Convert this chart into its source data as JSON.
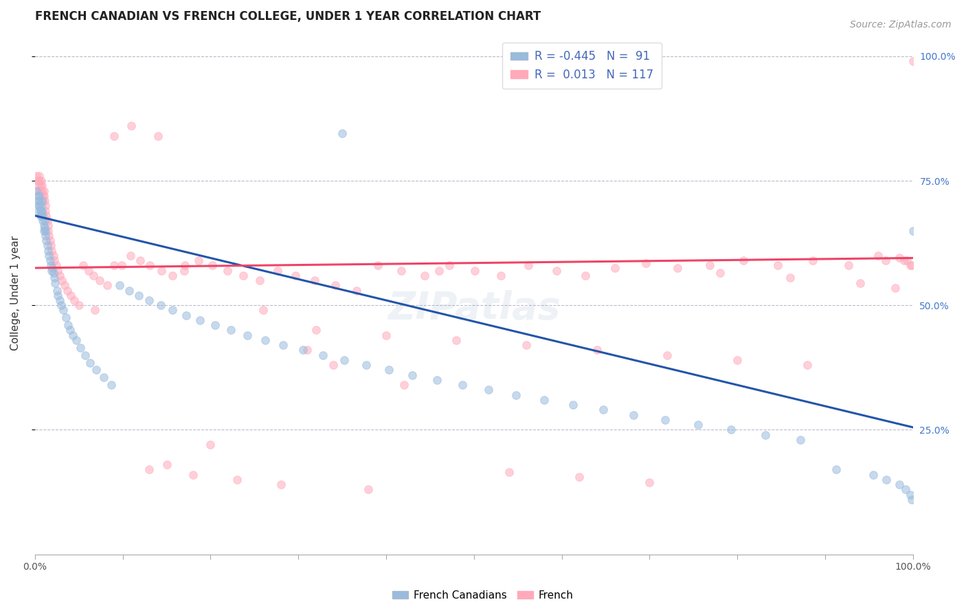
{
  "title": "FRENCH CANADIAN VS FRENCH COLLEGE, UNDER 1 YEAR CORRELATION CHART",
  "source": "Source: ZipAtlas.com",
  "ylabel": "College, Under 1 year",
  "right_yticks": [
    "25.0%",
    "50.0%",
    "75.0%",
    "100.0%"
  ],
  "right_ytick_vals": [
    0.25,
    0.5,
    0.75,
    1.0
  ],
  "legend_blue_r": "R = -0.445",
  "legend_blue_n": "N =  91",
  "legend_pink_r": "R =  0.013",
  "legend_pink_n": "N = 117",
  "color_blue": "#99BBDD",
  "color_pink": "#FFAABB",
  "color_blue_line": "#2255AA",
  "color_pink_line": "#EE4466",
  "legend_label_blue": "French Canadians",
  "legend_label_pink": "French",
  "watermark": "ZIPatlas",
  "blue_line_x": [
    0.0,
    1.0
  ],
  "blue_line_y": [
    0.68,
    0.255
  ],
  "pink_line_x": [
    0.0,
    1.0
  ],
  "pink_line_y": [
    0.575,
    0.595
  ],
  "xmin": 0.0,
  "xmax": 1.0,
  "ymin": 0.0,
  "ymax": 1.05,
  "marker_size": 70,
  "marker_alpha": 0.55,
  "grid_color": "#BBBBCC",
  "grid_style": "--",
  "bg_color": "#FFFFFF",
  "title_fontsize": 12,
  "axis_label_fontsize": 11,
  "tick_fontsize": 10,
  "source_fontsize": 10,
  "watermark_fontsize": 40,
  "watermark_alpha": 0.12,
  "watermark_color": "#7799BB",
  "blue_points_x": [
    0.002,
    0.003,
    0.003,
    0.004,
    0.004,
    0.005,
    0.005,
    0.005,
    0.006,
    0.006,
    0.007,
    0.007,
    0.007,
    0.008,
    0.008,
    0.009,
    0.009,
    0.01,
    0.01,
    0.011,
    0.011,
    0.012,
    0.012,
    0.013,
    0.014,
    0.015,
    0.016,
    0.017,
    0.018,
    0.019,
    0.02,
    0.021,
    0.022,
    0.023,
    0.025,
    0.026,
    0.028,
    0.03,
    0.032,
    0.035,
    0.038,
    0.04,
    0.043,
    0.047,
    0.052,
    0.057,
    0.063,
    0.07,
    0.078,
    0.087,
    0.096,
    0.107,
    0.118,
    0.13,
    0.143,
    0.157,
    0.172,
    0.188,
    0.205,
    0.223,
    0.242,
    0.262,
    0.283,
    0.305,
    0.328,
    0.352,
    0.377,
    0.403,
    0.43,
    0.458,
    0.487,
    0.517,
    0.548,
    0.58,
    0.613,
    0.647,
    0.682,
    0.718,
    0.755,
    0.793,
    0.832,
    0.872,
    0.913,
    0.955,
    0.97,
    0.985,
    0.992,
    0.997,
    0.999,
    1.0,
    0.35
  ],
  "blue_points_y": [
    0.73,
    0.72,
    0.71,
    0.7,
    0.69,
    0.72,
    0.71,
    0.7,
    0.69,
    0.68,
    0.7,
    0.69,
    0.68,
    0.71,
    0.69,
    0.68,
    0.67,
    0.66,
    0.65,
    0.67,
    0.655,
    0.64,
    0.65,
    0.63,
    0.62,
    0.61,
    0.6,
    0.59,
    0.58,
    0.57,
    0.575,
    0.565,
    0.555,
    0.545,
    0.53,
    0.52,
    0.51,
    0.5,
    0.49,
    0.475,
    0.46,
    0.45,
    0.44,
    0.43,
    0.415,
    0.4,
    0.385,
    0.37,
    0.355,
    0.34,
    0.54,
    0.53,
    0.52,
    0.51,
    0.5,
    0.49,
    0.48,
    0.47,
    0.46,
    0.45,
    0.44,
    0.43,
    0.42,
    0.41,
    0.4,
    0.39,
    0.38,
    0.37,
    0.36,
    0.35,
    0.34,
    0.33,
    0.32,
    0.31,
    0.3,
    0.29,
    0.28,
    0.27,
    0.26,
    0.25,
    0.24,
    0.23,
    0.17,
    0.16,
    0.15,
    0.14,
    0.13,
    0.12,
    0.11,
    0.65,
    0.845
  ],
  "pink_points_x": [
    0.002,
    0.003,
    0.003,
    0.004,
    0.005,
    0.005,
    0.006,
    0.006,
    0.007,
    0.008,
    0.008,
    0.009,
    0.009,
    0.01,
    0.01,
    0.011,
    0.012,
    0.012,
    0.013,
    0.014,
    0.015,
    0.015,
    0.016,
    0.017,
    0.018,
    0.019,
    0.021,
    0.022,
    0.024,
    0.026,
    0.028,
    0.031,
    0.034,
    0.037,
    0.041,
    0.045,
    0.05,
    0.055,
    0.061,
    0.067,
    0.074,
    0.082,
    0.09,
    0.099,
    0.109,
    0.12,
    0.131,
    0.144,
    0.157,
    0.171,
    0.186,
    0.202,
    0.219,
    0.237,
    0.256,
    0.276,
    0.297,
    0.319,
    0.342,
    0.366,
    0.391,
    0.417,
    0.444,
    0.472,
    0.501,
    0.531,
    0.562,
    0.594,
    0.627,
    0.661,
    0.696,
    0.732,
    0.769,
    0.807,
    0.846,
    0.886,
    0.927,
    0.969,
    0.985,
    0.993,
    0.997,
    0.999,
    1.0,
    0.068,
    0.17,
    0.26,
    0.34,
    0.42,
    0.31,
    0.2,
    0.15,
    0.09,
    0.13,
    0.18,
    0.23,
    0.28,
    0.14,
    0.38,
    0.46,
    0.54,
    0.62,
    0.7,
    0.78,
    0.86,
    0.94,
    0.98,
    0.11,
    0.32,
    0.4,
    0.48,
    0.56,
    0.64,
    0.72,
    0.8,
    0.88,
    0.96,
    0.99
  ],
  "pink_points_y": [
    0.76,
    0.75,
    0.74,
    0.73,
    0.76,
    0.75,
    0.74,
    0.73,
    0.75,
    0.74,
    0.73,
    0.72,
    0.71,
    0.73,
    0.72,
    0.71,
    0.7,
    0.69,
    0.68,
    0.67,
    0.66,
    0.65,
    0.64,
    0.63,
    0.62,
    0.61,
    0.6,
    0.59,
    0.58,
    0.57,
    0.56,
    0.55,
    0.54,
    0.53,
    0.52,
    0.51,
    0.5,
    0.58,
    0.57,
    0.56,
    0.55,
    0.54,
    0.84,
    0.58,
    0.6,
    0.59,
    0.58,
    0.57,
    0.56,
    0.58,
    0.59,
    0.58,
    0.57,
    0.56,
    0.55,
    0.57,
    0.56,
    0.55,
    0.54,
    0.53,
    0.58,
    0.57,
    0.56,
    0.58,
    0.57,
    0.56,
    0.58,
    0.57,
    0.56,
    0.575,
    0.585,
    0.575,
    0.58,
    0.59,
    0.58,
    0.59,
    0.58,
    0.59,
    0.595,
    0.59,
    0.58,
    0.58,
    0.99,
    0.49,
    0.57,
    0.49,
    0.38,
    0.34,
    0.41,
    0.22,
    0.18,
    0.58,
    0.17,
    0.16,
    0.15,
    0.14,
    0.84,
    0.13,
    0.57,
    0.165,
    0.155,
    0.145,
    0.565,
    0.555,
    0.545,
    0.535,
    0.86,
    0.45,
    0.44,
    0.43,
    0.42,
    0.41,
    0.4,
    0.39,
    0.38,
    0.6,
    0.59
  ]
}
